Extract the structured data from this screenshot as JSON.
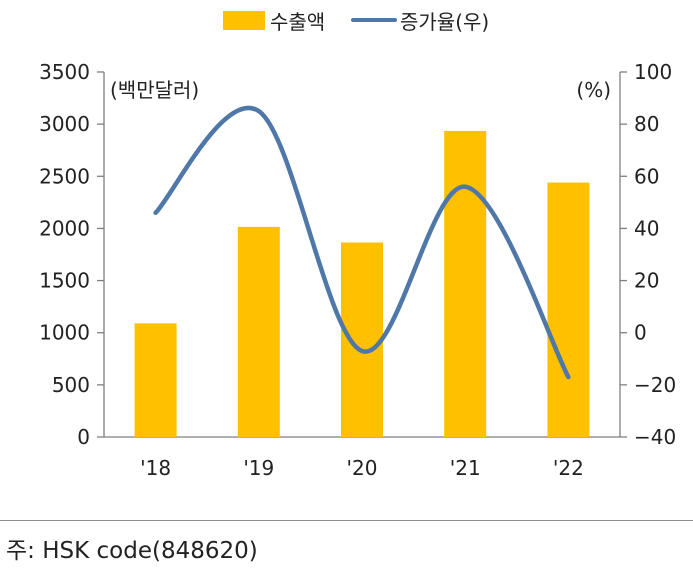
{
  "chart_data": {
    "type": "bar",
    "categories": [
      "'18",
      "'19",
      "'20",
      "'21",
      "'22"
    ],
    "series": [
      {
        "name": "수출액",
        "type": "bar",
        "axis": "left",
        "color": "#FFC000",
        "values": [
          1090,
          2015,
          1865,
          2935,
          2440
        ]
      },
      {
        "name": "증가율(우)",
        "type": "line",
        "axis": "right",
        "color": "#4F77A8",
        "values": [
          46,
          85,
          -7,
          56,
          -17
        ]
      }
    ],
    "y_left": {
      "unit_label": "(백만달러)",
      "ylim": [
        0,
        3500
      ],
      "ticks": [
        "0",
        "500",
        "1000",
        "1500",
        "2000",
        "2500",
        "3000",
        "3500"
      ]
    },
    "y_right": {
      "unit_label": "(%)",
      "ylim": [
        -40,
        100
      ],
      "ticks": [
        "-40",
        "-20",
        "0",
        "20",
        "40",
        "60",
        "80",
        "100"
      ]
    },
    "grid": false,
    "legend_position": "top-center"
  },
  "note": "주: HSK code(848620)"
}
